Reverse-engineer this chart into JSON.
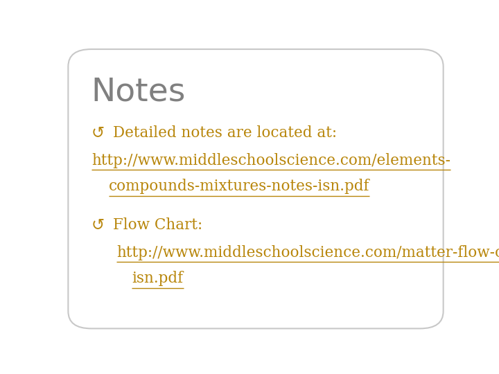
{
  "title": "Notes",
  "title_color": "#808080",
  "title_fontsize": 34,
  "background_color": "#ffffff",
  "border_color": "#c8c8c8",
  "bullet_color": "#b8860b",
  "text_color": "#b8860b",
  "url_color": "#b8860b",
  "bullet1_label": "Detailed notes are located at:",
  "url1_line1": "http://www.middleschoolscience.com/elements-",
  "url1_line2": "compounds-mixtures-notes-isn.pdf",
  "bullet2_label": "Flow Chart:",
  "url2_line1": "http://www.middleschoolscience.com/matter-flow-chart-",
  "url2_line2": "isn.pdf",
  "text_fontsize": 15.5,
  "sym": "↺"
}
